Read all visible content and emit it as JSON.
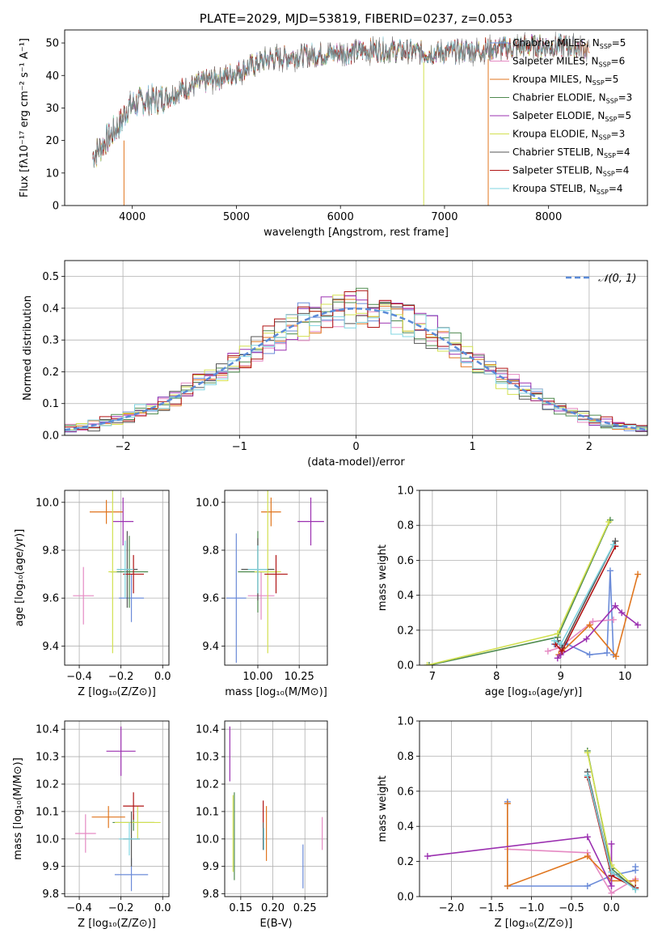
{
  "palette": {
    "Chabrier MILES": "#6b8bd8",
    "Salpeter MILES": "#e58ac3",
    "Kroupa MILES": "#e0761f",
    "Chabrier ELODIE": "#4e8a4e",
    "Salpeter ELODIE": "#9b30b0",
    "Kroupa ELODIE": "#d2e050",
    "Chabrier STELIB": "#555555",
    "Salpeter STELIB": "#b01414",
    "Kroupa STELIB": "#7fd4e0",
    "green_extra": "#5fb34a",
    "gaussian": "#5b8bd8"
  },
  "chart_data": [
    {
      "id": "spectrum",
      "type": "line",
      "title": "PLATE=2029, MJD=53819, FIBERID=0237, z=0.053",
      "xlabel": "wavelength [Angstrom, rest frame]",
      "ylabel": "Flux [fλ10⁻¹⁷ erg cm⁻² s⁻¹ A⁻¹]",
      "xlim": [
        3350,
        8950
      ],
      "ylim": [
        0,
        54
      ],
      "xticks": [
        4000,
        5000,
        6000,
        7000,
        8000
      ],
      "yticks": [
        0,
        10,
        20,
        30,
        40,
        50
      ],
      "grid": false,
      "legend": "top-right",
      "legend_entries": [
        {
          "name": "Chabrier MILES",
          "nssp": "5"
        },
        {
          "name": "Salpeter MILES",
          "nssp": "6"
        },
        {
          "name": "Kroupa MILES",
          "nssp": "5"
        },
        {
          "name": "Chabrier ELODIE",
          "nssp": "3"
        },
        {
          "name": "Salpeter ELODIE",
          "nssp": "5"
        },
        {
          "name": "Kroupa ELODIE",
          "nssp": "3"
        },
        {
          "name": "Chabrier STELIB",
          "nssp": "4"
        },
        {
          "name": "Salpeter STELIB",
          "nssp": "4"
        },
        {
          "name": "Kroupa STELIB",
          "nssp": "4"
        }
      ],
      "legend_label_suffix": ", N",
      "legend_sub": "SSP",
      "continuum": {
        "x": [
          3620,
          3800,
          3900,
          3950,
          4000,
          4100,
          4300,
          4500,
          4700,
          5000,
          5300,
          5600,
          6000,
          6400,
          6800,
          7000,
          7400,
          7800,
          8200,
          8400
        ],
        "y": [
          15,
          22,
          26,
          30,
          31,
          32,
          33,
          36,
          38,
          41,
          45,
          46,
          47,
          48,
          47,
          47,
          48,
          49,
          49,
          48
        ]
      },
      "artifacts": [
        {
          "x": 3920,
          "y_from": 20,
          "y_to": 0
        },
        {
          "x": 6800,
          "y_from": 44,
          "y_to": 0
        },
        {
          "x": 7420,
          "y_from": 45,
          "y_to": 0
        }
      ]
    },
    {
      "id": "residuals",
      "type": "bar",
      "xlabel": "(data-model)/error",
      "ylabel": "Normed distribution",
      "xlim": [
        -2.5,
        2.5
      ],
      "ylim": [
        0,
        0.55
      ],
      "xticks": [
        -2,
        -1,
        0,
        1,
        2
      ],
      "yticks": [
        0.0,
        0.1,
        0.2,
        0.3,
        0.4,
        0.5
      ],
      "grid": true,
      "legend": "top-right",
      "gaussian_label": "𝒩(0, 1)",
      "bin_width": 0.1,
      "bin_start": -2.5,
      "bins": 50
    },
    {
      "id": "age_vs_Z",
      "type": "scatter",
      "xlabel": "Z [log₁₀(Z/Z⊙)]",
      "ylabel": "age  [log₁₀(age/yr)]",
      "xlim": [
        -0.47,
        0.03
      ],
      "ylim": [
        9.32,
        10.05
      ],
      "xticks": [
        -0.4,
        -0.2,
        0.0
      ],
      "yticks": [
        9.4,
        9.6,
        9.8,
        10.0
      ],
      "grid": true,
      "points": [
        {
          "name": "Chabrier MILES",
          "x": -0.15,
          "xerr": 0.06,
          "y": 9.6,
          "yerr": 0.1
        },
        {
          "name": "Salpeter MILES",
          "x": -0.38,
          "xerr": 0.05,
          "y": 9.61,
          "yerr": 0.12
        },
        {
          "name": "Kroupa MILES",
          "x": -0.27,
          "xerr": 0.08,
          "y": 9.96,
          "yerr": 0.05
        },
        {
          "name": "Chabrier ELODIE",
          "x": -0.16,
          "xerr": 0.09,
          "y": 9.71,
          "yerr": 0.15
        },
        {
          "name": "Salpeter ELODIE",
          "x": -0.19,
          "xerr": 0.05,
          "y": 9.92,
          "yerr": 0.1
        },
        {
          "name": "Kroupa ELODIE",
          "x": -0.24,
          "xerr": 0.02,
          "y": 9.71,
          "yerr": 0.34
        },
        {
          "name": "Chabrier STELIB",
          "x": -0.17,
          "xerr": 0.05,
          "y": 9.72,
          "yerr": 0.16
        },
        {
          "name": "Salpeter STELIB",
          "x": -0.14,
          "xerr": 0.05,
          "y": 9.7,
          "yerr": 0.08
        },
        {
          "name": "Kroupa STELIB",
          "x": -0.18,
          "xerr": 0.04,
          "y": 9.72,
          "yerr": 0.12
        }
      ]
    },
    {
      "id": "age_vs_mass",
      "type": "scatter",
      "xlabel": "mass [log₁₀(M/M⊙)]",
      "xlim": [
        9.8,
        10.42
      ],
      "ylim": [
        9.32,
        10.05
      ],
      "xticks": [
        10.0,
        10.25
      ],
      "yticks": [
        9.4,
        9.6,
        9.8,
        10.0
      ],
      "grid": true,
      "points": [
        {
          "name": "Chabrier MILES",
          "x": 9.87,
          "xerr": 0.06,
          "y": 9.6,
          "yerr": 0.27
        },
        {
          "name": "Salpeter MILES",
          "x": 10.02,
          "xerr": 0.08,
          "y": 9.61,
          "yerr": 0.1
        },
        {
          "name": "Kroupa MILES",
          "x": 10.08,
          "xerr": 0.06,
          "y": 9.96,
          "yerr": 0.06
        },
        {
          "name": "Chabrier ELODIE",
          "x": 10.0,
          "xerr": 0.12,
          "y": 9.71,
          "yerr": 0.17
        },
        {
          "name": "Salpeter ELODIE",
          "x": 10.32,
          "xerr": 0.08,
          "y": 9.92,
          "yerr": 0.1
        },
        {
          "name": "Kroupa ELODIE",
          "x": 10.06,
          "xerr": 0.08,
          "y": 9.71,
          "yerr": 0.34
        },
        {
          "name": "Chabrier STELIB",
          "x": 10.0,
          "xerr": 0.1,
          "y": 9.72,
          "yerr": 0.13
        },
        {
          "name": "Salpeter STELIB",
          "x": 10.11,
          "xerr": 0.07,
          "y": 9.7,
          "yerr": 0.08
        },
        {
          "name": "Kroupa STELIB",
          "x": 10.0,
          "xerr": 0.06,
          "y": 9.72,
          "yerr": 0.1
        }
      ]
    },
    {
      "id": "mw_vs_age",
      "type": "line",
      "xlabel": "age  [log₁₀(age/yr)]",
      "ylabel": "mass weight",
      "xlim": [
        6.8,
        10.35
      ],
      "ylim": [
        0,
        1.0
      ],
      "xticks": [
        7,
        8,
        9,
        10
      ],
      "yticks": [
        0.0,
        0.2,
        0.4,
        0.6,
        0.8,
        1.0
      ],
      "grid": true,
      "series": [
        {
          "name": "Chabrier MILES",
          "x": [
            8.9,
            9.1,
            9.45,
            9.72,
            9.77,
            9.82
          ],
          "y": [
            0.12,
            0.12,
            0.06,
            0.07,
            0.54,
            0.06
          ]
        },
        {
          "name": "Salpeter MILES",
          "x": [
            8.8,
            8.98,
            9.5,
            9.82
          ],
          "y": [
            0.08,
            0.1,
            0.25,
            0.26
          ]
        },
        {
          "name": "Kroupa MILES",
          "x": [
            8.97,
            9.45,
            9.86,
            10.2
          ],
          "y": [
            0.06,
            0.23,
            0.05,
            0.52
          ]
        },
        {
          "name": "Chabrier ELODIE",
          "x": [
            6.95,
            8.95,
            9.77
          ],
          "y": [
            0.0,
            0.16,
            0.83
          ]
        },
        {
          "name": "Salpeter ELODIE",
          "x": [
            8.95,
            9.0,
            9.4,
            9.85,
            9.95,
            10.2
          ],
          "y": [
            0.04,
            0.06,
            0.15,
            0.34,
            0.3,
            0.23
          ]
        },
        {
          "name": "Kroupa ELODIE",
          "x": [
            6.92,
            8.95,
            9.75
          ],
          "y": [
            0.0,
            0.18,
            0.82
          ]
        },
        {
          "name": "Chabrier STELIB",
          "x": [
            8.95,
            9.02,
            9.85
          ],
          "y": [
            0.14,
            0.1,
            0.71
          ]
        },
        {
          "name": "Salpeter STELIB",
          "x": [
            8.92,
            9.02,
            9.85
          ],
          "y": [
            0.12,
            0.08,
            0.68
          ]
        },
        {
          "name": "Kroupa STELIB",
          "x": [
            8.9,
            9.0,
            9.82
          ],
          "y": [
            0.14,
            0.12,
            0.69
          ]
        }
      ]
    },
    {
      "id": "mass_vs_Z",
      "type": "scatter",
      "xlabel": "Z [log₁₀(Z/Z⊙)]",
      "ylabel": "mass [log₁₀(M/M⊙)]",
      "xlim": [
        -0.47,
        0.03
      ],
      "ylim": [
        9.79,
        10.43
      ],
      "xticks": [
        -0.4,
        -0.2,
        0.0
      ],
      "yticks": [
        9.8,
        9.9,
        10.0,
        10.1,
        10.2,
        10.3,
        10.4
      ],
      "grid": true,
      "points": [
        {
          "name": "Chabrier MILES",
          "x": -0.15,
          "xerr": 0.08,
          "y": 9.87,
          "yerr": 0.06
        },
        {
          "name": "Salpeter MILES",
          "x": -0.37,
          "xerr": 0.05,
          "y": 10.02,
          "yerr": 0.07
        },
        {
          "name": "Kroupa MILES",
          "x": -0.26,
          "xerr": 0.08,
          "y": 10.08,
          "yerr": 0.04
        },
        {
          "name": "Chabrier ELODIE",
          "x": -0.14,
          "xerr": 0.1,
          "y": 10.06,
          "yerr": 0.03
        },
        {
          "name": "Salpeter ELODIE",
          "x": -0.2,
          "xerr": 0.07,
          "y": 10.32,
          "yerr": 0.09
        },
        {
          "name": "Kroupa ELODIE",
          "x": -0.12,
          "xerr": 0.11,
          "y": 10.06,
          "yerr": 0.06
        },
        {
          "name": "Chabrier STELIB",
          "x": -0.15,
          "xerr": 0.04,
          "y": 10.0,
          "yerr": 0.1
        },
        {
          "name": "Salpeter STELIB",
          "x": -0.14,
          "xerr": 0.05,
          "y": 10.12,
          "yerr": 0.05
        },
        {
          "name": "Kroupa STELIB",
          "x": -0.16,
          "xerr": 0.05,
          "y": 10.0,
          "yerr": 0.06
        }
      ]
    },
    {
      "id": "mass_vs_ebv",
      "type": "scatter",
      "xlabel": "E(B-V)",
      "xlim": [
        0.125,
        0.285
      ],
      "ylim": [
        9.79,
        10.43
      ],
      "xticks": [
        0.15,
        0.2,
        0.25
      ],
      "yticks": [
        9.8,
        9.9,
        10.0,
        10.1,
        10.2,
        10.3,
        10.4
      ],
      "grid": true,
      "points": [
        {
          "name": "Chabrier MILES",
          "x": 0.247,
          "y": 9.9,
          "yerr": 0.08
        },
        {
          "name": "Salpeter MILES",
          "x": 0.277,
          "y": 10.02,
          "yerr": 0.06
        },
        {
          "name": "Kroupa MILES",
          "x": 0.19,
          "y": 10.02,
          "yerr": 0.1
        },
        {
          "name": "Chabrier ELODIE",
          "x": 0.14,
          "y": 10.01,
          "yerr": 0.16
        },
        {
          "name": "Salpeter ELODIE",
          "x": 0.133,
          "y": 10.31,
          "yerr": 0.1
        },
        {
          "name": "Kroupa ELODIE",
          "x": 0.138,
          "y": 10.02,
          "yerr": 0.14
        },
        {
          "name": "Chabrier STELIB",
          "x": 0.185,
          "y": 10.01,
          "yerr": 0.05
        },
        {
          "name": "Salpeter STELIB",
          "x": 0.185,
          "y": 10.1,
          "yerr": 0.04
        },
        {
          "name": "Kroupa STELIB",
          "x": 0.186,
          "y": 10.0,
          "yerr": 0.04
        }
      ]
    },
    {
      "id": "mw_vs_Z",
      "type": "line",
      "xlabel": "Z [log₁₀(Z/Z⊙)]",
      "ylabel": "mass weight",
      "xlim": [
        -2.4,
        0.45
      ],
      "ylim": [
        0,
        1.0
      ],
      "xticks": [
        -2.0,
        -1.5,
        -1.0,
        -0.5,
        0.0
      ],
      "yticks": [
        0.0,
        0.2,
        0.4,
        0.6,
        0.8,
        1.0
      ],
      "grid": true,
      "series": [
        {
          "name": "Chabrier MILES",
          "x": [
            -1.3,
            -1.3,
            -0.3,
            0.0,
            0.3,
            0.3
          ],
          "y": [
            0.54,
            0.06,
            0.06,
            0.12,
            0.15,
            0.17
          ]
        },
        {
          "name": "Salpeter MILES",
          "x": [
            -1.3,
            -0.3,
            0.0,
            0.3
          ],
          "y": [
            0.27,
            0.25,
            0.02,
            0.1
          ]
        },
        {
          "name": "Kroupa MILES",
          "x": [
            -1.3,
            -1.3,
            -0.3,
            0.0,
            0.3
          ],
          "y": [
            0.53,
            0.06,
            0.23,
            0.09,
            0.09
          ]
        },
        {
          "name": "Chabrier ELODIE",
          "x": [
            -0.3,
            0.0,
            0.3
          ],
          "y": [
            0.83,
            0.16,
            0.04
          ]
        },
        {
          "name": "Salpeter ELODIE",
          "x": [
            -2.3,
            -0.3,
            0.0,
            0.0
          ],
          "y": [
            0.23,
            0.34,
            0.06,
            0.3
          ]
        },
        {
          "name": "Kroupa ELODIE",
          "x": [
            -0.3,
            0.0,
            0.3
          ],
          "y": [
            0.82,
            0.18,
            0.05
          ]
        },
        {
          "name": "Chabrier STELIB",
          "x": [
            -0.3,
            0.0,
            0.3
          ],
          "y": [
            0.71,
            0.14,
            0.05
          ]
        },
        {
          "name": "Salpeter STELIB",
          "x": [
            -0.3,
            0.0,
            0.3
          ],
          "y": [
            0.68,
            0.12,
            0.05
          ]
        },
        {
          "name": "Kroupa STELIB",
          "x": [
            -0.3,
            0.0,
            0.3
          ],
          "y": [
            0.69,
            0.14,
            0.04
          ]
        }
      ]
    }
  ]
}
